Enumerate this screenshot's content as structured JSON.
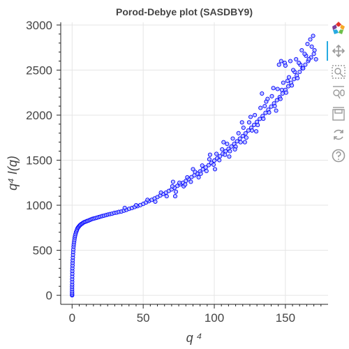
{
  "chart_data": {
    "type": "scatter",
    "title": "Porod-Debye plot (SASDBY9)",
    "xlabel": "q ⁴",
    "ylabel": "q⁴ I(q)",
    "xlim": [
      -8,
      180
    ],
    "ylim": [
      -100,
      3030
    ],
    "xticks": [
      0,
      50,
      100,
      150
    ],
    "xtick_labels": [
      "0",
      "50",
      "100",
      "150"
    ],
    "yticks": [
      0,
      500,
      1000,
      1500,
      2000,
      2500,
      3000
    ],
    "ytick_labels": [
      "0",
      "500",
      "1000",
      "1500",
      "2000",
      "2500",
      "3000"
    ],
    "grid": true,
    "marker_fill": "#aab2ff",
    "marker_stroke": "#0000ff",
    "series": [
      {
        "name": "q4I(q)",
        "points": [
          [
            0.0,
            0
          ],
          [
            0.0,
            10
          ],
          [
            0.0,
            25
          ],
          [
            0.01,
            45
          ],
          [
            0.01,
            70
          ],
          [
            0.02,
            95
          ],
          [
            0.03,
            120
          ],
          [
            0.05,
            150
          ],
          [
            0.07,
            180
          ],
          [
            0.1,
            210
          ],
          [
            0.13,
            240
          ],
          [
            0.17,
            270
          ],
          [
            0.22,
            300
          ],
          [
            0.28,
            330
          ],
          [
            0.35,
            360
          ],
          [
            0.43,
            390
          ],
          [
            0.52,
            420
          ],
          [
            0.62,
            450
          ],
          [
            0.74,
            480
          ],
          [
            0.88,
            510
          ],
          [
            1.03,
            540
          ],
          [
            1.2,
            565
          ],
          [
            1.4,
            590
          ],
          [
            1.62,
            615
          ],
          [
            1.86,
            640
          ],
          [
            2.13,
            660
          ],
          [
            2.43,
            680
          ],
          [
            2.76,
            700
          ],
          [
            3.12,
            715
          ],
          [
            3.5,
            730
          ],
          [
            3.9,
            745
          ],
          [
            4.3,
            755
          ],
          [
            4.8,
            765
          ],
          [
            5.3,
            775
          ],
          [
            5.8,
            782
          ],
          [
            6.4,
            790
          ],
          [
            7.0,
            796
          ],
          [
            7.6,
            803
          ],
          [
            8.3,
            810
          ],
          [
            9.0,
            815
          ],
          [
            9.8,
            820
          ],
          [
            10.6,
            825
          ],
          [
            11.5,
            830
          ],
          [
            12.4,
            836
          ],
          [
            13.3,
            842
          ],
          [
            14.3,
            848
          ],
          [
            15.3,
            852
          ],
          [
            16.4,
            857
          ],
          [
            17.5,
            862
          ],
          [
            18.7,
            868
          ],
          [
            19.9,
            873
          ],
          [
            21.1,
            879
          ],
          [
            22.4,
            884
          ],
          [
            23.8,
            890
          ],
          [
            25.2,
            896
          ],
          [
            26.6,
            902
          ],
          [
            28.1,
            906
          ],
          [
            29.7,
            914
          ],
          [
            31.3,
            918
          ],
          [
            32.9,
            926
          ],
          [
            34.6,
            930
          ],
          [
            36.4,
            940
          ],
          [
            38.2,
            948
          ],
          [
            40.1,
            960
          ],
          [
            42.0,
            968
          ],
          [
            44.0,
            980
          ],
          [
            46.0,
            990
          ],
          [
            48.0,
            1002
          ],
          [
            50.0,
            1015
          ],
          [
            52.0,
            1030
          ],
          [
            54.0,
            1045
          ],
          [
            56.0,
            1060
          ],
          [
            58.0,
            1075
          ],
          [
            60.0,
            1090
          ],
          [
            62.0,
            1108
          ],
          [
            64.0,
            1125
          ],
          [
            66.0,
            1140
          ],
          [
            68.0,
            1158
          ],
          [
            70.0,
            1175
          ],
          [
            72.0,
            1195
          ],
          [
            74.0,
            1215
          ],
          [
            76.0,
            1232
          ],
          [
            78.0,
            1250
          ],
          [
            80.0,
            1270
          ],
          [
            82.0,
            1290
          ],
          [
            84.0,
            1312
          ],
          [
            86.0,
            1332
          ],
          [
            88.0,
            1352
          ],
          [
            90.0,
            1375
          ],
          [
            92.0,
            1398
          ],
          [
            94.0,
            1420
          ],
          [
            96.0,
            1445
          ],
          [
            98.0,
            1470
          ],
          [
            100.0,
            1495
          ],
          [
            102.0,
            1520
          ],
          [
            104.0,
            1545
          ],
          [
            106.0,
            1570
          ],
          [
            108.0,
            1600
          ],
          [
            110.0,
            1625
          ],
          [
            112.0,
            1652
          ],
          [
            114.0,
            1680
          ],
          [
            116.0,
            1710
          ],
          [
            118.0,
            1740
          ],
          [
            120.0,
            1768
          ],
          [
            122.0,
            1798
          ],
          [
            124.0,
            1830
          ],
          [
            126.0,
            1860
          ],
          [
            128.0,
            1892
          ],
          [
            130.0,
            1925
          ],
          [
            132.0,
            1958
          ],
          [
            134.0,
            1990
          ],
          [
            136.0,
            2025
          ],
          [
            138.0,
            2060
          ],
          [
            140.0,
            2095
          ],
          [
            142.0,
            2130
          ],
          [
            144.0,
            2165
          ],
          [
            146.0,
            2200
          ],
          [
            148.0,
            2240
          ],
          [
            150.0,
            2280
          ],
          [
            152.0,
            2320
          ],
          [
            154.0,
            2360
          ],
          [
            156.0,
            2400
          ],
          [
            158.0,
            2440
          ],
          [
            160.0,
            2480
          ],
          [
            162.0,
            2520
          ],
          [
            164.0,
            2560
          ],
          [
            166.0,
            2600
          ],
          [
            168.0,
            2640
          ],
          [
            170.0,
            2680
          ],
          [
            37.0,
            970
          ],
          [
            45.0,
            1000
          ],
          [
            53.0,
            1060
          ],
          [
            58.5,
            1040
          ],
          [
            62.5,
            1140
          ],
          [
            66.5,
            1100
          ],
          [
            70.5,
            1210
          ],
          [
            73.0,
            1150
          ],
          [
            75.5,
            1250
          ],
          [
            78.5,
            1210
          ],
          [
            81.0,
            1310
          ],
          [
            83.5,
            1260
          ],
          [
            86.5,
            1370
          ],
          [
            89.0,
            1310
          ],
          [
            91.5,
            1440
          ],
          [
            94.5,
            1380
          ],
          [
            96.5,
            1510
          ],
          [
            99.5,
            1450
          ],
          [
            101.5,
            1570
          ],
          [
            103.5,
            1500
          ],
          [
            105.5,
            1620
          ],
          [
            107.5,
            1560
          ],
          [
            109.0,
            1680
          ],
          [
            111.0,
            1600
          ],
          [
            113.0,
            1740
          ],
          [
            115.0,
            1650
          ],
          [
            117.0,
            1800
          ],
          [
            118.5,
            1700
          ],
          [
            120.5,
            1860
          ],
          [
            122.5,
            1750
          ],
          [
            124.5,
            1920
          ],
          [
            126.5,
            1830
          ],
          [
            128.5,
            2000
          ],
          [
            130.5,
            1890
          ],
          [
            132.5,
            2080
          ],
          [
            134.5,
            1960
          ],
          [
            136.5,
            2150
          ],
          [
            138.5,
            2030
          ],
          [
            140.5,
            2210
          ],
          [
            142.5,
            2100
          ],
          [
            144.5,
            2290
          ],
          [
            146.5,
            2180
          ],
          [
            148.5,
            2360
          ],
          [
            150.5,
            2250
          ],
          [
            152.5,
            2420
          ],
          [
            154.5,
            2330
          ],
          [
            156.5,
            2480
          ],
          [
            158.5,
            2410
          ],
          [
            160.5,
            2560
          ],
          [
            162.5,
            2520
          ],
          [
            164.5,
            2660
          ],
          [
            166.5,
            2620
          ],
          [
            168.5,
            2760
          ],
          [
            170.5,
            2720
          ],
          [
            71.0,
            1260
          ],
          [
            72.5,
            1100
          ],
          [
            79.5,
            1230
          ],
          [
            85.0,
            1400
          ],
          [
            90.5,
            1350
          ],
          [
            97.0,
            1560
          ],
          [
            100.5,
            1400
          ],
          [
            106.5,
            1700
          ],
          [
            110.5,
            1540
          ],
          [
            114.5,
            1620
          ],
          [
            119.5,
            1920
          ],
          [
            121.5,
            1700
          ],
          [
            125.5,
            1980
          ],
          [
            129.5,
            1820
          ],
          [
            133.5,
            2240
          ],
          [
            135.5,
            2100
          ],
          [
            137.5,
            2180
          ],
          [
            141.5,
            2300
          ],
          [
            143.5,
            2050
          ],
          [
            145.5,
            2560
          ],
          [
            147.5,
            2280
          ],
          [
            149.5,
            2580
          ],
          [
            151.5,
            2380
          ],
          [
            153.5,
            2600
          ],
          [
            155.5,
            2500
          ],
          [
            157.5,
            2620
          ],
          [
            159.5,
            2580
          ],
          [
            161.5,
            2720
          ],
          [
            163.5,
            2680
          ],
          [
            165.5,
            2790
          ],
          [
            167.5,
            2840
          ],
          [
            169.5,
            2880
          ],
          [
            171.5,
            2620
          ],
          [
            147.0,
            2600
          ],
          [
            150.0,
            2550
          ]
        ]
      }
    ]
  },
  "toolbar": {
    "tools": [
      "bokeh-logo-icon",
      "pan-icon",
      "box-zoom-icon",
      "wheel-zoom-icon",
      "save-icon",
      "reset-icon",
      "help-icon"
    ]
  }
}
